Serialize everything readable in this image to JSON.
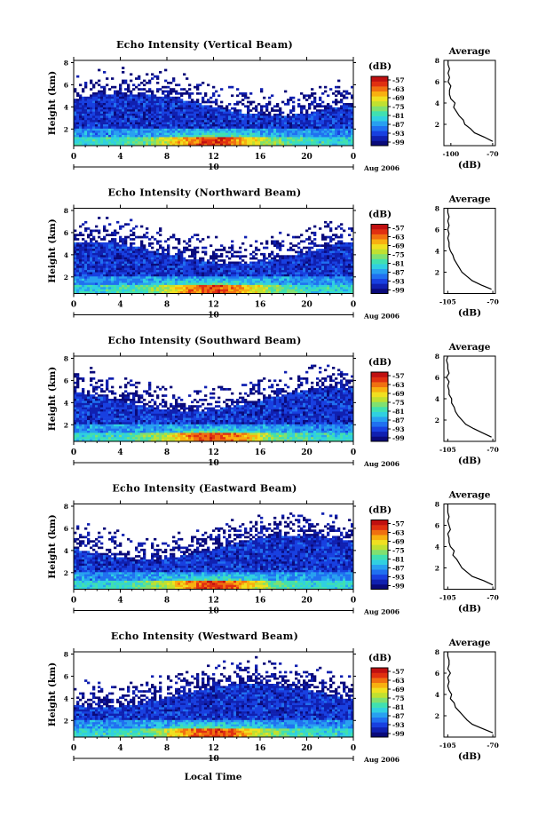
{
  "figure": {
    "x_title": "Local Time"
  },
  "colorbar": {
    "unit": "(dB)",
    "tick_labels": [
      "-57",
      "-63",
      "-69",
      "-75",
      "-81",
      "-87",
      "-93",
      "-99"
    ],
    "colors": [
      "#0a0a7a",
      "#1020b0",
      "#1840e0",
      "#2070f0",
      "#28a0f0",
      "#30d0e0",
      "#40e0b0",
      "#80e070",
      "#c0e030",
      "#f0e020",
      "#f8b010",
      "#f07010",
      "#e03010",
      "#c01010"
    ],
    "range": [
      -102,
      -54
    ]
  },
  "chart_data": [
    {
      "type": "heatmap",
      "title": "Echo Intensity (Vertical Beam)",
      "ylabel": "Height (km)",
      "x_ticks": [
        "0",
        "4",
        "8",
        "12",
        "16",
        "20",
        "0"
      ],
      "xlim": [
        0,
        24
      ],
      "ylim": [
        0.5,
        8.2
      ],
      "y_ticks": [
        "2",
        "4",
        "6",
        "8"
      ],
      "date_day": "10",
      "date_label": "Aug 2006",
      "profile": {
        "title": "Average",
        "xlabel": "(dB)",
        "x_ticks": [
          "-100",
          "-70"
        ],
        "xlim": [
          -105,
          -68
        ],
        "y_ticks": [
          "2",
          "4",
          "6",
          "8"
        ],
        "ylim": [
          0,
          8
        ],
        "height_km": [
          0.4,
          0.8,
          1.2,
          1.6,
          2.0,
          2.4,
          2.8,
          3.2,
          3.6,
          4.0,
          4.4,
          4.8,
          5.2,
          5.6,
          6.0,
          6.4,
          6.8,
          7.2,
          7.6,
          8.0
        ],
        "intensity_db": [
          -70,
          -76,
          -83,
          -86,
          -90,
          -91,
          -94,
          -96,
          -98,
          -97,
          -100,
          -101,
          -101,
          -100,
          -102,
          -101,
          -102,
          -101,
          -102,
          -102
        ]
      }
    },
    {
      "type": "heatmap",
      "title": "Echo Intensity (Northward Beam)",
      "ylabel": "Height (km)",
      "x_ticks": [
        "0",
        "4",
        "8",
        "12",
        "16",
        "20",
        "0"
      ],
      "xlim": [
        0,
        24
      ],
      "ylim": [
        0.5,
        8.2
      ],
      "y_ticks": [
        "2",
        "4",
        "6",
        "8"
      ],
      "date_day": "10",
      "date_label": "Aug 2006",
      "profile": {
        "title": "Average",
        "xlabel": "(dB)",
        "x_ticks": [
          "-105",
          "-70"
        ],
        "xlim": [
          -108,
          -68
        ],
        "y_ticks": [
          "2",
          "4",
          "6",
          "8"
        ],
        "ylim": [
          0,
          8
        ],
        "height_km": [
          0.4,
          0.8,
          1.2,
          1.6,
          2.0,
          2.4,
          2.8,
          3.2,
          3.6,
          4.0,
          4.4,
          4.8,
          5.2,
          5.6,
          6.0,
          6.4,
          6.8,
          7.2,
          7.6,
          8.0
        ],
        "intensity_db": [
          -71,
          -79,
          -86,
          -90,
          -94,
          -96,
          -98,
          -100,
          -101,
          -103,
          -104,
          -104,
          -105,
          -104,
          -105,
          -104,
          -105,
          -104,
          -105,
          -105
        ]
      }
    },
    {
      "type": "heatmap",
      "title": "Echo Intensity (Southward Beam)",
      "ylabel": "Height (km)",
      "x_ticks": [
        "0",
        "4",
        "8",
        "12",
        "16",
        "20",
        "0"
      ],
      "xlim": [
        0,
        24
      ],
      "ylim": [
        0.5,
        8.2
      ],
      "y_ticks": [
        "2",
        "4",
        "6",
        "8"
      ],
      "date_day": "10",
      "date_label": "Aug 2006",
      "profile": {
        "title": "Average",
        "xlabel": "(dB)",
        "x_ticks": [
          "-105",
          "-70"
        ],
        "xlim": [
          -108,
          -68
        ],
        "y_ticks": [
          "2",
          "4",
          "6",
          "8"
        ],
        "ylim": [
          0,
          8
        ],
        "height_km": [
          0.4,
          0.8,
          1.2,
          1.6,
          2.0,
          2.4,
          2.8,
          3.2,
          3.6,
          4.0,
          4.4,
          4.8,
          5.2,
          5.6,
          6.0,
          6.4,
          6.8,
          7.2,
          7.6,
          8.0
        ],
        "intensity_db": [
          -71,
          -78,
          -85,
          -91,
          -94,
          -97,
          -99,
          -100,
          -102,
          -102,
          -104,
          -104,
          -105,
          -104,
          -106,
          -104,
          -105,
          -105,
          -106,
          -105
        ]
      }
    },
    {
      "type": "heatmap",
      "title": "Echo Intensity (Eastward Beam)",
      "ylabel": "Height (km)",
      "x_ticks": [
        "0",
        "4",
        "8",
        "12",
        "16",
        "20",
        "0"
      ],
      "xlim": [
        0,
        24
      ],
      "ylim": [
        0.5,
        8.2
      ],
      "y_ticks": [
        "2",
        "4",
        "6",
        "8"
      ],
      "date_day": "10",
      "date_label": "Aug 2006",
      "profile": {
        "title": "Average",
        "xlabel": "(dB)",
        "x_ticks": [
          "-105",
          "-70"
        ],
        "xlim": [
          -108,
          -68
        ],
        "y_ticks": [
          "2",
          "4",
          "6",
          "8"
        ],
        "ylim": [
          0,
          8
        ],
        "height_km": [
          0.4,
          0.8,
          1.2,
          1.6,
          2.0,
          2.4,
          2.8,
          3.2,
          3.6,
          4.0,
          4.4,
          4.8,
          5.2,
          5.6,
          6.0,
          6.4,
          6.8,
          7.2,
          7.6,
          8.0
        ],
        "intensity_db": [
          -70,
          -77,
          -86,
          -90,
          -94,
          -96,
          -98,
          -101,
          -100,
          -103,
          -104,
          -104,
          -105,
          -103,
          -104,
          -105,
          -104,
          -105,
          -105,
          -105
        ]
      }
    },
    {
      "type": "heatmap",
      "title": "Echo Intensity (Westward Beam)",
      "ylabel": "Height (km)",
      "x_ticks": [
        "0",
        "4",
        "8",
        "12",
        "16",
        "20",
        "0"
      ],
      "xlim": [
        0,
        24
      ],
      "ylim": [
        0.5,
        8.2
      ],
      "y_ticks": [
        "2",
        "4",
        "6",
        "8"
      ],
      "date_day": "10",
      "date_label": "Aug 2006",
      "profile": {
        "title": "Average",
        "xlabel": "(dB)",
        "x_ticks": [
          "-105",
          "-70"
        ],
        "xlim": [
          -108,
          -68
        ],
        "y_ticks": [
          "2",
          "4",
          "6",
          "8"
        ],
        "ylim": [
          0,
          8
        ],
        "height_km": [
          0.4,
          0.8,
          1.2,
          1.6,
          2.0,
          2.4,
          2.8,
          3.2,
          3.6,
          4.0,
          4.4,
          4.8,
          5.2,
          5.6,
          6.0,
          6.4,
          6.8,
          7.2,
          7.6,
          8.0
        ],
        "intensity_db": [
          -70,
          -78,
          -86,
          -90,
          -93,
          -96,
          -99,
          -100,
          -103,
          -102,
          -104,
          -105,
          -104,
          -105,
          -103,
          -105,
          -104,
          -104,
          -105,
          -105
        ]
      }
    }
  ]
}
